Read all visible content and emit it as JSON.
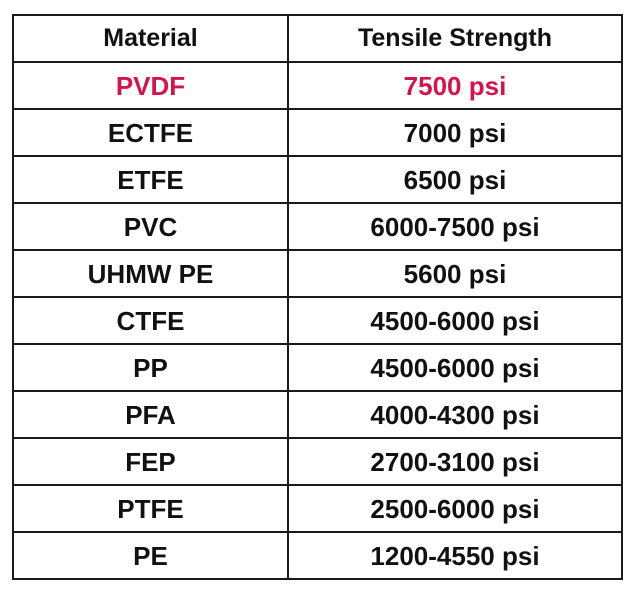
{
  "headers": {
    "material": "Material",
    "strength": "Tensile Strength"
  },
  "rows": [
    {
      "material": "PVDF",
      "strength": "7500 psi",
      "highlight": true
    },
    {
      "material": "ECTFE",
      "strength": "7000 psi",
      "highlight": false
    },
    {
      "material": "ETFE",
      "strength": "6500 psi",
      "highlight": false
    },
    {
      "material": "PVC",
      "strength": "6000-7500 psi",
      "highlight": false
    },
    {
      "material": "UHMW PE",
      "strength": "5600 psi",
      "highlight": false
    },
    {
      "material": "CTFE",
      "strength": "4500-6000 psi",
      "highlight": false
    },
    {
      "material": "PP",
      "strength": "4500-6000 psi",
      "highlight": false
    },
    {
      "material": "PFA",
      "strength": "4000-4300 psi",
      "highlight": false
    },
    {
      "material": "FEP",
      "strength": "2700-3100 psi",
      "highlight": false
    },
    {
      "material": "PTFE",
      "strength": "2500-6000 psi",
      "highlight": false
    },
    {
      "material": "PE",
      "strength": "1200-4550 psi",
      "highlight": false
    }
  ],
  "colors": {
    "highlight": "#d4144a",
    "text": "#111111",
    "border": "#1a1a1a"
  }
}
